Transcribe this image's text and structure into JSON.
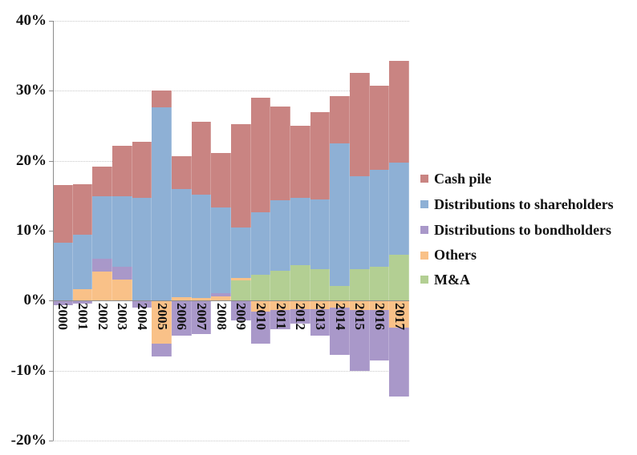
{
  "chart_data": {
    "type": "bar",
    "stacked": true,
    "orientation": "vertical",
    "gap_between_bars": false,
    "categories": [
      "2000",
      "2001",
      "2002",
      "2003",
      "2004",
      "2005",
      "2006",
      "2007",
      "2008",
      "2009",
      "2010",
      "2011",
      "2012",
      "2013",
      "2014",
      "2015",
      "2016",
      "2017"
    ],
    "series": [
      {
        "name": "M&A",
        "color": "#b3cf93",
        "values": [
          0,
          0,
          0,
          0,
          0,
          0,
          0,
          0,
          0,
          2.9,
          3.7,
          4.3,
          5.1,
          4.5,
          2.1,
          4.5,
          4.9,
          6.6
        ]
      },
      {
        "name": "Others",
        "color": "#f9c188",
        "values": [
          0,
          1.6,
          4.2,
          3.0,
          0,
          -6.1,
          0.5,
          0.4,
          0.6,
          0.3,
          -1.6,
          -1.3,
          -1.2,
          -1.2,
          -1.0,
          -1.3,
          -1.3,
          -3.9
        ]
      },
      {
        "name": "Distributions to bondholders",
        "color": "#a998c9",
        "values": [
          -0.7,
          -0.4,
          1.8,
          1.8,
          -1.0,
          -1.9,
          -5.0,
          -4.8,
          0.5,
          -2.8,
          -4.6,
          -2.8,
          -2.1,
          -3.8,
          -6.7,
          -8.7,
          -7.2,
          -9.8
        ]
      },
      {
        "name": "Distributions to shareholders",
        "color": "#8eb0d5",
        "values": [
          8.3,
          7.8,
          8.9,
          10.1,
          14.7,
          27.6,
          15.4,
          14.8,
          12.2,
          7.3,
          8.95,
          10.0,
          9.6,
          10.0,
          20.4,
          13.3,
          13.8,
          13.1
        ]
      },
      {
        "name": "Cash pile",
        "color": "#c98482",
        "values": [
          8.2,
          7.2,
          4.3,
          7.2,
          8.0,
          2.4,
          4.7,
          10.4,
          7.8,
          14.7,
          16.35,
          13.4,
          10.3,
          12.4,
          6.7,
          14.8,
          12.0,
          14.6
        ]
      }
    ],
    "title": "",
    "xlabel": "",
    "ylabel": "",
    "ylim": [
      -20,
      40
    ],
    "ytick_values": [
      40,
      30,
      20,
      10,
      0,
      -10,
      -20
    ],
    "ytick_labels": [
      "40%",
      "30%",
      "20%",
      "10%",
      "0%",
      "-10%",
      "-20%"
    ],
    "gridline_values": [
      40,
      30,
      20,
      10,
      -10,
      -20
    ],
    "grid": "dotted-horizontal",
    "legend_position": "right"
  },
  "legend": {
    "items": [
      {
        "label": "Cash pile",
        "color": "#c98482"
      },
      {
        "label": "Distributions to shareholders",
        "color": "#8eb0d5"
      },
      {
        "label": "Distributions to bondholders",
        "color": "#a998c9"
      },
      {
        "label": "Others",
        "color": "#f9c188"
      },
      {
        "label": "M&A",
        "color": "#b3cf93"
      }
    ]
  }
}
